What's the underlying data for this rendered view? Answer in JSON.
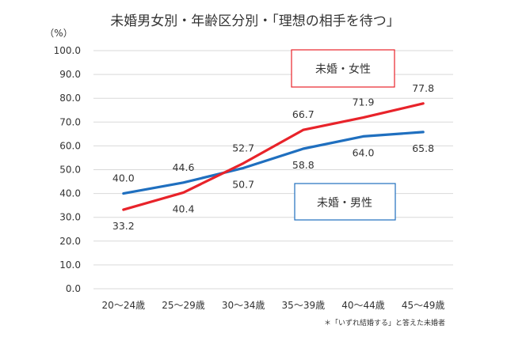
{
  "chart_data": {
    "type": "line",
    "title": "未婚男女別・年齢区分別・「理想の相手を待つ」",
    "ylabel": "（%）",
    "ylim": [
      0,
      100
    ],
    "yticks": [
      "100.0",
      "90.0",
      "80.0",
      "70.0",
      "60.0",
      "50.0",
      "40.0",
      "30.0",
      "20.0",
      "10.0",
      "0.0"
    ],
    "ytick_values": [
      100,
      90,
      80,
      70,
      60,
      50,
      40,
      30,
      20,
      10,
      0
    ],
    "categories": [
      "20～24歳",
      "25～29歳",
      "30～34歳",
      "35～39歳",
      "40～44歳",
      "45～49歳"
    ],
    "series": [
      {
        "name": "未婚・女性",
        "color": "#e8232a",
        "values": [
          33.2,
          40.4,
          52.7,
          66.7,
          71.9,
          77.8
        ],
        "labels": [
          "33.2",
          "40.4",
          "52.7",
          "66.7",
          "71.9",
          "77.8"
        ]
      },
      {
        "name": "未婚・男性",
        "color": "#1f6fbf",
        "values": [
          40.0,
          44.6,
          50.7,
          58.8,
          64.0,
          65.8
        ],
        "labels": [
          "40.0",
          "44.6",
          "50.7",
          "58.8",
          "64.0",
          "65.8"
        ]
      }
    ],
    "grid": true,
    "note": "＊「いずれ結婚する」と答えた未婚者"
  }
}
